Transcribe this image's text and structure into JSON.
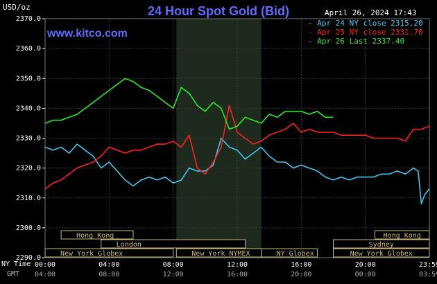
{
  "header": {
    "title": "24 Hour Spot Gold (Bid)",
    "site": "www.kitco.com",
    "unit_label": "USD/oz",
    "datetime": "April 26, 2024 17:43"
  },
  "legend": [
    {
      "text": "Apr 24 NY close 2315.20",
      "color": "#3ec8f0"
    },
    {
      "text": "Apr 25 NY close 2331.70",
      "color": "#ff2020"
    },
    {
      "text": "Apr 26 Last 2337.40",
      "color": "#22ee22"
    }
  ],
  "axis": {
    "ny_time_label": "NY Time",
    "gmt_label": "GMT"
  },
  "chart_data": {
    "type": "line",
    "title": "24 Hour Spot Gold (Bid)",
    "ylabel": "USD/oz",
    "ylim": [
      2290,
      2370
    ],
    "y_ticks": [
      "2370.0",
      "2360.0",
      "2350.0",
      "2340.0",
      "2330.0",
      "2320.0",
      "2310.0",
      "2300.0",
      "2290.0"
    ],
    "x_range_hours": [
      0,
      24
    ],
    "x_ticks_ny": [
      "00:00",
      "04:00",
      "08:00",
      "12:00",
      "16:00",
      "20:00",
      "23:59"
    ],
    "x_ticks_gmt": [
      "04:00",
      "08:00",
      "12:00",
      "16:00",
      "20:00",
      "00:00",
      "03:59"
    ],
    "grid": true,
    "shaded_hours": [
      8.2,
      13.5
    ],
    "sessions": [
      {
        "label": "Hong Kong",
        "start": 1,
        "end": 5.5,
        "row": 0,
        "side": "left"
      },
      {
        "label": "London",
        "start": 3.5,
        "end": 12.5,
        "row": 1,
        "side": "left"
      },
      {
        "label": "New York Globex",
        "start": 0,
        "end": 8,
        "row": 2,
        "side": "left"
      },
      {
        "label": "New York NYMEX",
        "start": 8.2,
        "end": 13.5,
        "row": 2,
        "side": "left"
      },
      {
        "label": "NY Globex",
        "start": 13.5,
        "end": 17,
        "row": 2,
        "side": "left"
      },
      {
        "label": "Hong Kong",
        "start": 20.6,
        "end": 24,
        "row": 0,
        "side": "right"
      },
      {
        "label": "Sydney",
        "start": 18,
        "end": 24,
        "row": 1,
        "side": "right"
      },
      {
        "label": "New York Globex",
        "start": 18,
        "end": 24,
        "row": 2,
        "side": "right"
      }
    ],
    "series": [
      {
        "name": "Apr 24 NY close 2315.20",
        "color": "#3ec8f0",
        "x": [
          0,
          0.5,
          1,
          1.5,
          2,
          2.5,
          3,
          3.5,
          4,
          4.5,
          5,
          5.5,
          6,
          6.5,
          7,
          7.5,
          8,
          8.5,
          9,
          9.5,
          10,
          10.5,
          11,
          11.5,
          12,
          12.5,
          13,
          13.5,
          14,
          14.5,
          15,
          15.5,
          16,
          16.5,
          17,
          17.5,
          18,
          18.5,
          19,
          19.5,
          20,
          20.5,
          21,
          21.5,
          22,
          22.5,
          23,
          23.3,
          23.5,
          23.7,
          23.99
        ],
        "y": [
          2327,
          2326,
          2327,
          2325,
          2328,
          2326,
          2324,
          2320,
          2322,
          2319,
          2316,
          2314,
          2316,
          2317,
          2316,
          2317,
          2315,
          2316,
          2320,
          2319,
          2319,
          2321,
          2330,
          2327,
          2326,
          2323,
          2325,
          2327,
          2324,
          2322,
          2322,
          2320,
          2321,
          2320,
          2319,
          2317,
          2316,
          2317,
          2316,
          2317,
          2317,
          2317,
          2318,
          2318,
          2319,
          2318,
          2320,
          2319,
          2308,
          2311,
          2313
        ]
      },
      {
        "name": "Apr 25 NY close 2331.70",
        "color": "#ff2020",
        "x": [
          0,
          0.5,
          1,
          1.5,
          2,
          2.5,
          3,
          3.5,
          4,
          4.5,
          5,
          5.5,
          6,
          6.5,
          7,
          7.5,
          8,
          8.5,
          9,
          9.5,
          10,
          10.5,
          11,
          11.5,
          12,
          12.5,
          13,
          13.5,
          14,
          14.5,
          15,
          15.5,
          16,
          16.5,
          17,
          17.5,
          18,
          18.5,
          19,
          19.5,
          20,
          20.5,
          21,
          21.5,
          22,
          22.5,
          23,
          23.5,
          23.99
        ],
        "y": [
          2313,
          2315,
          2316,
          2318,
          2320,
          2321,
          2322,
          2324,
          2327,
          2326,
          2325,
          2326,
          2326,
          2327,
          2328,
          2328,
          2329,
          2327,
          2331,
          2320,
          2318,
          2322,
          2327,
          2341,
          2332,
          2330,
          2328,
          2329,
          2331,
          2332,
          2333,
          2335,
          2332,
          2333,
          2332,
          2332,
          2332,
          2331,
          2331,
          2331,
          2331,
          2330,
          2330,
          2330,
          2330,
          2329,
          2333,
          2333,
          2334
        ]
      },
      {
        "name": "Apr 26 Last 2337.40",
        "color": "#22ee22",
        "x": [
          0,
          0.5,
          1,
          1.5,
          2,
          2.5,
          3,
          3.5,
          4,
          4.5,
          5,
          5.5,
          6,
          6.5,
          7,
          7.5,
          8,
          8.5,
          9,
          9.5,
          10,
          10.5,
          11,
          11.5,
          12,
          12.5,
          13,
          13.5,
          14,
          14.5,
          15,
          15.5,
          16,
          16.5,
          17,
          17.5,
          18
        ],
        "y": [
          2335,
          2336,
          2336,
          2337,
          2338,
          2340,
          2342,
          2344,
          2346,
          2348,
          2350,
          2349,
          2347,
          2346,
          2344,
          2342,
          2340,
          2347,
          2345,
          2341,
          2339,
          2342,
          2340,
          2333,
          2334,
          2337,
          2336,
          2335,
          2338,
          2337,
          2339,
          2339,
          2339,
          2338,
          2339,
          2337,
          2337
        ]
      }
    ]
  }
}
